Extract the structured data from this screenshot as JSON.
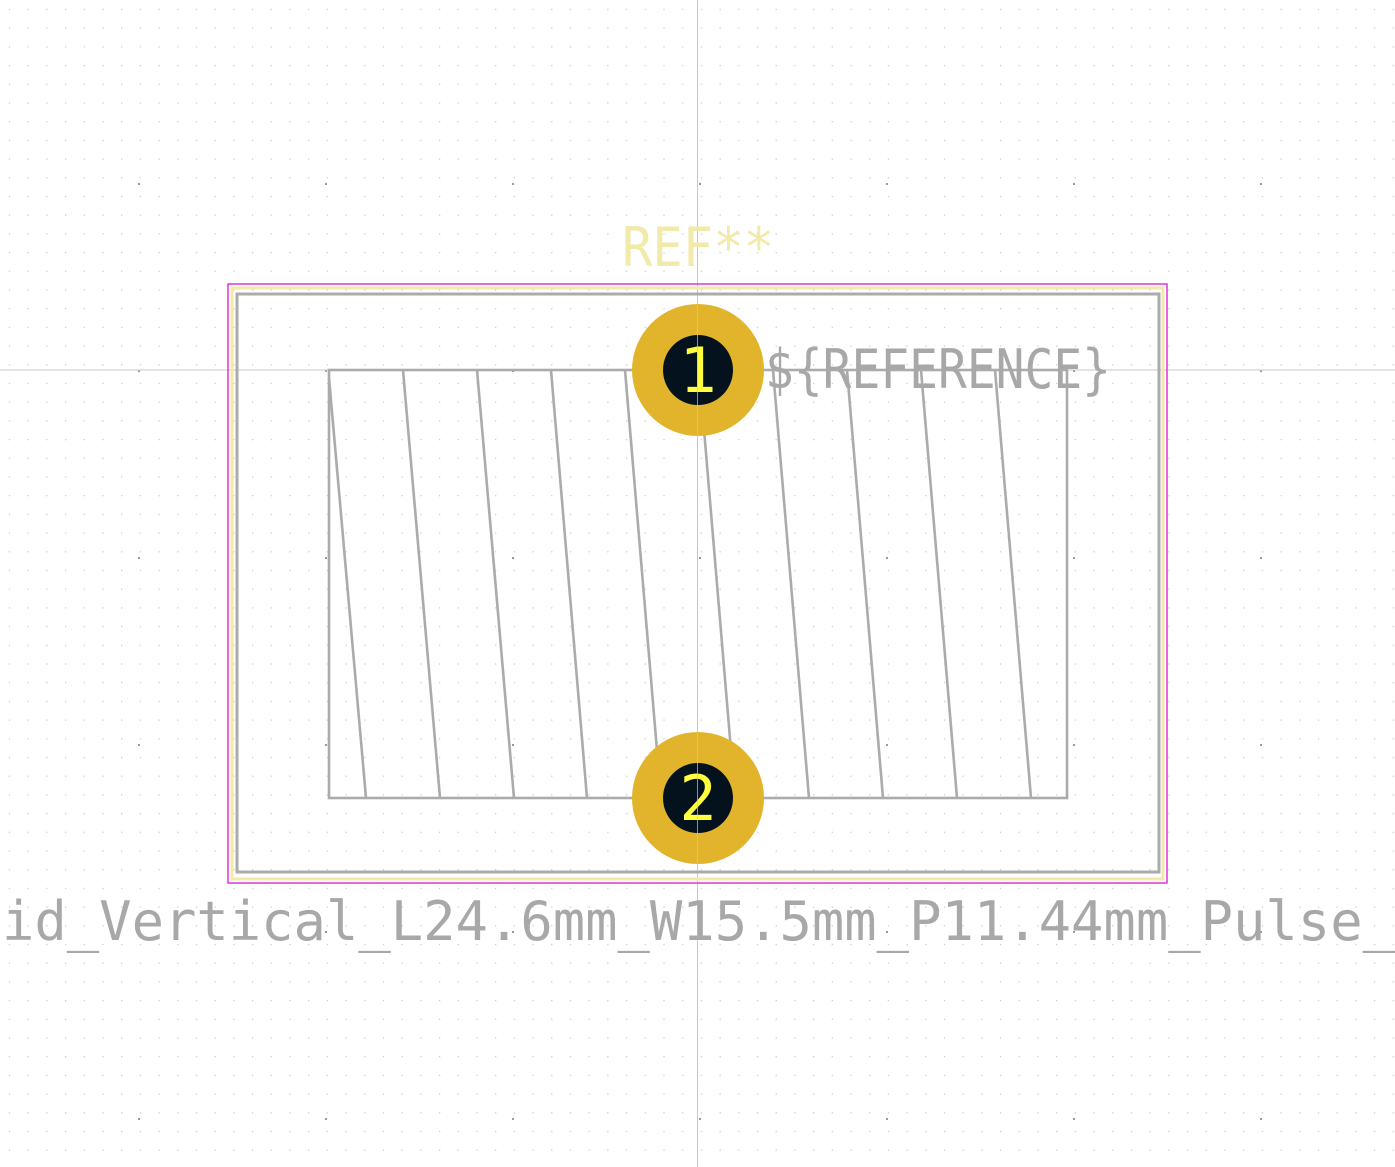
{
  "footprint": {
    "ref_label": "REF**",
    "reference_field": "${REFERENCE}",
    "value_label": "id_Vertical_L24.6mm_W15.5mm_P11.44mm_Pulse_"
  },
  "pads": [
    {
      "number": "1"
    },
    {
      "number": "2"
    }
  ],
  "colors": {
    "background": "#ffffff",
    "grid_dot": "#b8b8b8",
    "crosshair": "#c8c8c8",
    "courtyard": "#e040e0",
    "silkscreen": "#f2eaa8",
    "fabrication": "#a8a8a8",
    "pad_copper": "#e2b42c",
    "pad_hole": "#04121e",
    "pad_number": "#ffff40",
    "ref_text": "#f2eaa8",
    "fab_text": "#a8a8a8"
  }
}
